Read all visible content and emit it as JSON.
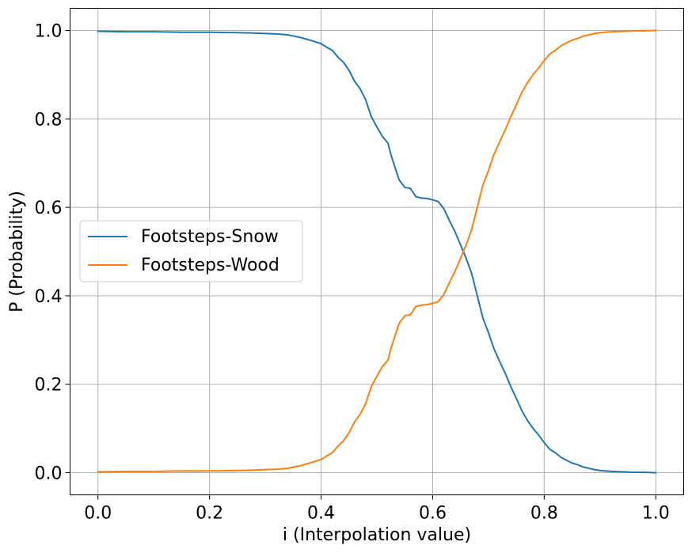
{
  "chart_data": {
    "type": "line",
    "xlabel": "i (Interpolation value)",
    "ylabel": "P (Probability)",
    "xlim": [
      -0.05,
      1.05
    ],
    "ylim": [
      -0.05,
      1.05
    ],
    "xticks": [
      0.0,
      0.2,
      0.4,
      0.6,
      0.8,
      1.0
    ],
    "xtick_labels": [
      "0.0",
      "0.2",
      "0.4",
      "0.6",
      "0.8",
      "1.0"
    ],
    "yticks": [
      0.0,
      0.2,
      0.4,
      0.6,
      0.8,
      1.0
    ],
    "ytick_labels": [
      "0.0",
      "0.2",
      "0.4",
      "0.6",
      "0.8",
      "1.0"
    ],
    "grid": true,
    "legend_position": "center-left",
    "x": [
      0.0,
      0.05,
      0.1,
      0.15,
      0.2,
      0.25,
      0.28,
      0.3,
      0.32,
      0.34,
      0.36,
      0.38,
      0.4,
      0.41,
      0.42,
      0.43,
      0.44,
      0.45,
      0.46,
      0.47,
      0.48,
      0.49,
      0.5,
      0.51,
      0.52,
      0.525,
      0.53,
      0.54,
      0.55,
      0.56,
      0.57,
      0.58,
      0.59,
      0.6,
      0.61,
      0.62,
      0.63,
      0.64,
      0.65,
      0.66,
      0.67,
      0.68,
      0.69,
      0.7,
      0.71,
      0.72,
      0.73,
      0.74,
      0.75,
      0.76,
      0.77,
      0.78,
      0.79,
      0.8,
      0.81,
      0.82,
      0.83,
      0.84,
      0.85,
      0.86,
      0.87,
      0.88,
      0.89,
      0.9,
      0.92,
      0.94,
      0.96,
      0.98,
      1.0
    ],
    "series": [
      {
        "name": "Footsteps-Snow",
        "color": "#1f77b4",
        "values": [
          0.998,
          0.997,
          0.997,
          0.996,
          0.996,
          0.995,
          0.994,
          0.993,
          0.992,
          0.99,
          0.985,
          0.978,
          0.97,
          0.962,
          0.955,
          0.94,
          0.928,
          0.91,
          0.885,
          0.868,
          0.843,
          0.805,
          0.782,
          0.76,
          0.745,
          0.72,
          0.7,
          0.662,
          0.645,
          0.643,
          0.624,
          0.621,
          0.62,
          0.617,
          0.613,
          0.597,
          0.57,
          0.545,
          0.515,
          0.485,
          0.45,
          0.4,
          0.35,
          0.317,
          0.28,
          0.252,
          0.225,
          0.195,
          0.168,
          0.14,
          0.118,
          0.1,
          0.085,
          0.068,
          0.053,
          0.045,
          0.035,
          0.028,
          0.022,
          0.018,
          0.013,
          0.01,
          0.007,
          0.005,
          0.003,
          0.002,
          0.001,
          0.001,
          0.0
        ]
      },
      {
        "name": "Footsteps-Wood",
        "color": "#ff7f0e",
        "values": [
          0.002,
          0.003,
          0.003,
          0.004,
          0.004,
          0.005,
          0.006,
          0.007,
          0.008,
          0.01,
          0.015,
          0.022,
          0.03,
          0.038,
          0.045,
          0.06,
          0.072,
          0.09,
          0.115,
          0.132,
          0.157,
          0.195,
          0.218,
          0.24,
          0.255,
          0.28,
          0.3,
          0.338,
          0.355,
          0.357,
          0.376,
          0.379,
          0.38,
          0.383,
          0.387,
          0.403,
          0.43,
          0.455,
          0.485,
          0.515,
          0.55,
          0.6,
          0.65,
          0.683,
          0.72,
          0.748,
          0.775,
          0.805,
          0.832,
          0.86,
          0.882,
          0.9,
          0.915,
          0.932,
          0.947,
          0.955,
          0.965,
          0.972,
          0.978,
          0.982,
          0.987,
          0.99,
          0.993,
          0.995,
          0.997,
          0.998,
          0.999,
          0.999,
          1.0
        ]
      }
    ]
  }
}
